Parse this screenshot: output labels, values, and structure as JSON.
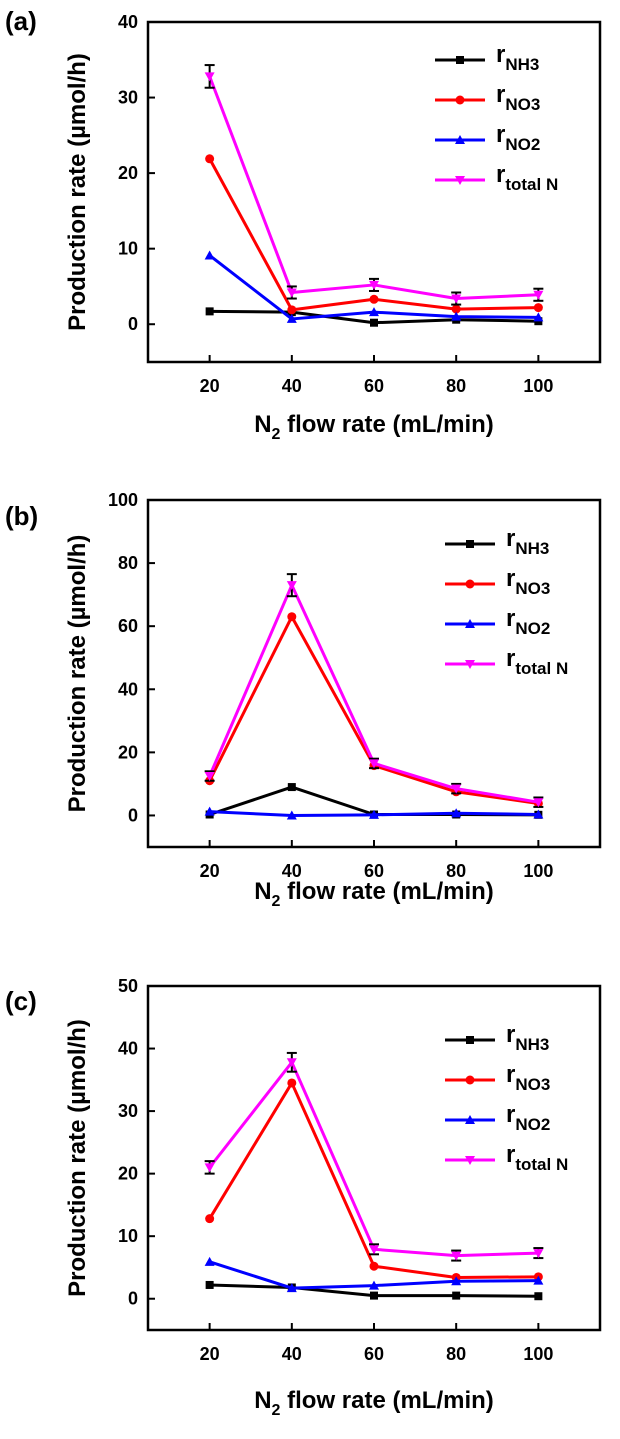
{
  "chart_data": [
    {
      "panel": "(a)",
      "type": "line",
      "categories": [
        20,
        40,
        60,
        80,
        100
      ],
      "xlabel": "N2 flow rate (mL/min)",
      "xlabel_main": "N",
      "xlabel_sub": "2",
      "xlabel_rest": " flow rate (mL/min)",
      "ylabel": "Production rate (µmol/h)",
      "ylim": [
        -5,
        40
      ],
      "yticks": [
        0,
        10,
        20,
        30,
        40
      ],
      "legend_position": "top-right",
      "series": [
        {
          "name": "rNH3",
          "main": "r",
          "sub": "NH3",
          "color": "#000000",
          "marker": "square",
          "values": [
            1.7,
            1.6,
            0.2,
            0.6,
            0.4
          ],
          "errors": [
            0,
            0,
            0,
            0,
            0
          ]
        },
        {
          "name": "rNO3",
          "main": "r",
          "sub": "NO3",
          "color": "#ff0000",
          "marker": "circle",
          "values": [
            21.9,
            1.9,
            3.3,
            2.0,
            2.2
          ],
          "errors": [
            0,
            0,
            0,
            0,
            0
          ]
        },
        {
          "name": "rNO2",
          "main": "r",
          "sub": "NO2",
          "color": "#0000ff",
          "marker": "triangle-up",
          "values": [
            9.1,
            0.7,
            1.6,
            1.0,
            0.9
          ],
          "errors": [
            0,
            0,
            0,
            0,
            0
          ]
        },
        {
          "name": "rtotal N",
          "main": "r",
          "sub": "total N",
          "color": "#ff00ff",
          "marker": "triangle-down",
          "values": [
            32.8,
            4.2,
            5.2,
            3.4,
            3.9
          ],
          "errors": [
            1.5,
            0.8,
            0.8,
            0.8,
            0.8
          ]
        }
      ]
    },
    {
      "panel": "(b)",
      "type": "line",
      "categories": [
        20,
        40,
        60,
        80,
        100
      ],
      "xlabel": "N2 flow rate (mL/min)",
      "xlabel_main": "N",
      "xlabel_sub": "2",
      "xlabel_rest": " flow rate (mL/min)",
      "ylabel": "Production rate (µmol/h)",
      "ylim": [
        -10,
        100
      ],
      "yticks": [
        0,
        20,
        40,
        60,
        80,
        100
      ],
      "legend_position": "top-right",
      "series": [
        {
          "name": "rNH3",
          "main": "r",
          "sub": "NH3",
          "color": "#000000",
          "marker": "square",
          "values": [
            0.3,
            9.0,
            0.3,
            0.3,
            0.2
          ],
          "errors": [
            0,
            0,
            0,
            0,
            0
          ]
        },
        {
          "name": "rNO3",
          "main": "r",
          "sub": "NO3",
          "color": "#ff0000",
          "marker": "circle",
          "values": [
            11.0,
            63.0,
            15.8,
            7.5,
            3.8
          ],
          "errors": [
            0,
            0,
            0,
            0,
            0
          ]
        },
        {
          "name": "rNO2",
          "main": "r",
          "sub": "NO2",
          "color": "#0000ff",
          "marker": "triangle-up",
          "values": [
            1.2,
            0.0,
            0.2,
            0.7,
            0.3
          ],
          "errors": [
            0,
            0,
            0,
            0,
            0
          ]
        },
        {
          "name": "rtotal N",
          "main": "r",
          "sub": "total N",
          "color": "#ff00ff",
          "marker": "triangle-down",
          "values": [
            12.5,
            73.0,
            16.5,
            8.5,
            4.2
          ],
          "errors": [
            1.5,
            3.5,
            1.5,
            1.5,
            1.5
          ]
        }
      ]
    },
    {
      "panel": "(c)",
      "type": "line",
      "categories": [
        20,
        40,
        60,
        80,
        100
      ],
      "xlabel": "N2 flow rate (mL/min)",
      "xlabel_main": "N",
      "xlabel_sub": "2",
      "xlabel_rest": " flow rate (mL/min)",
      "ylabel": "Production rate (µmol/h)",
      "ylim": [
        -5,
        50
      ],
      "yticks": [
        0,
        10,
        20,
        30,
        40,
        50
      ],
      "legend_position": "top-right",
      "series": [
        {
          "name": "rNH3",
          "main": "r",
          "sub": "NH3",
          "color": "#000000",
          "marker": "square",
          "values": [
            2.2,
            1.8,
            0.5,
            0.5,
            0.4
          ],
          "errors": [
            0,
            0,
            0,
            0,
            0
          ]
        },
        {
          "name": "rNO3",
          "main": "r",
          "sub": "NO3",
          "color": "#ff0000",
          "marker": "circle",
          "values": [
            12.8,
            34.5,
            5.2,
            3.4,
            3.5
          ],
          "errors": [
            0,
            0,
            0,
            0,
            0
          ]
        },
        {
          "name": "rNO2",
          "main": "r",
          "sub": "NO2",
          "color": "#0000ff",
          "marker": "triangle-up",
          "values": [
            5.9,
            1.7,
            2.1,
            2.8,
            2.9
          ],
          "errors": [
            0,
            0,
            0,
            0,
            0
          ]
        },
        {
          "name": "rtotal N",
          "main": "r",
          "sub": "total N",
          "color": "#ff00ff",
          "marker": "triangle-down",
          "values": [
            21.0,
            37.8,
            7.9,
            6.9,
            7.3
          ],
          "errors": [
            1.0,
            1.5,
            0.8,
            0.8,
            0.8
          ]
        }
      ]
    }
  ]
}
